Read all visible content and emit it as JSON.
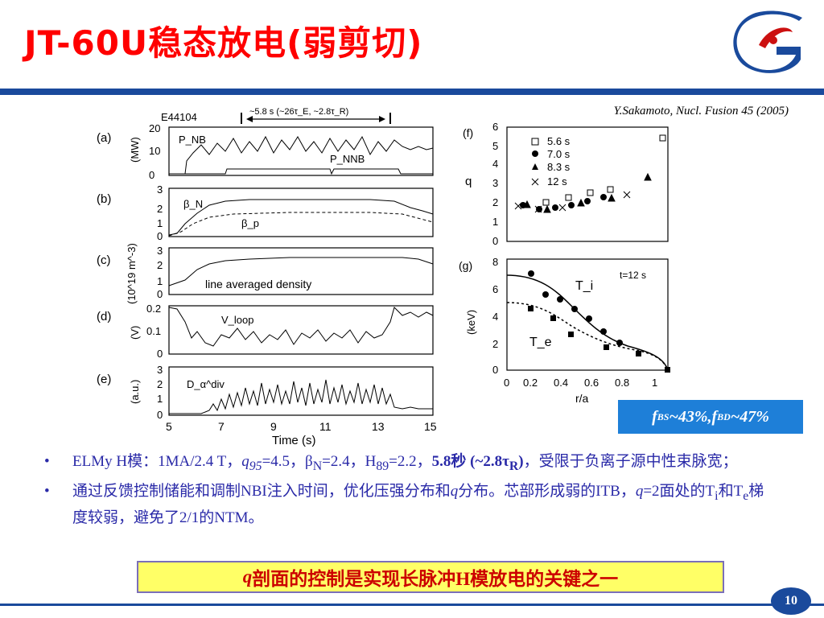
{
  "slide": {
    "title": "JT-60U稳态放电(弱剪切)",
    "citation": "Y.Sakamoto, Nucl. Fusion 45 (2005)",
    "badge": {
      "f1": "f",
      "sub1": "BS",
      "v1": "~43%,",
      "f2": "f",
      "sub2": "BD",
      "v2": "~47%"
    },
    "bullets": [
      {
        "parts": [
          {
            "t": "ELMy H模：1MA/2.4 T，"
          },
          {
            "t": "q",
            "i": true
          },
          {
            "t": "95",
            "i": true,
            "sub": true
          },
          {
            "t": "=4.5，β"
          },
          {
            "t": "N",
            "sub": true
          },
          {
            "t": "=2.4，H"
          },
          {
            "t": "89",
            "sub": true
          },
          {
            "t": "=2.2，"
          },
          {
            "t": "5.8秒 (~2.8τ",
            "b": true
          },
          {
            "t": "R",
            "sub": true,
            "b": true
          },
          {
            "t": ")",
            "b": true
          },
          {
            "t": "，受限于负离子源中性束脉宽；"
          }
        ]
      },
      {
        "parts": [
          {
            "t": "通过反馈控制储能和调制NBI注入时间，优化压强分布和"
          },
          {
            "t": "q",
            "i": true
          },
          {
            "t": "分布。芯部形成弱的ITB，"
          },
          {
            "t": "q",
            "i": true
          },
          {
            "t": "=2面处的T"
          },
          {
            "t": "i",
            "sub": true
          },
          {
            "t": "和T"
          },
          {
            "t": "e",
            "sub": true
          },
          {
            "t": "梯度较弱，避免了2/1的NTM。"
          }
        ]
      }
    ],
    "highlight": {
      "q": "q",
      "text": "剖面的控制是实现长脉冲H模放电的关键之一"
    },
    "page_number": "10"
  },
  "figure": {
    "shot_label": "E44104",
    "duration_annotation": "~5.8 s (~26τ_E, ~2.8τ_R)",
    "time_xlabel": "Time (s)",
    "time_ticks": [
      "5",
      "7",
      "9",
      "11",
      "13",
      "15"
    ],
    "panels": {
      "a": {
        "letter": "(a)",
        "ylabel": "(MW)",
        "yticks": [
          "0",
          "10",
          "20"
        ],
        "labels": [
          "P_NB",
          "P_NNB"
        ]
      },
      "b": {
        "letter": "(b)",
        "ylabel": "",
        "yticks": [
          "0",
          "1",
          "2",
          "3"
        ],
        "labels": [
          "β_N",
          "β_p"
        ]
      },
      "c": {
        "letter": "(c)",
        "ylabel": "(10^19 m^-3)",
        "yticks": [
          "0",
          "1",
          "2",
          "3"
        ],
        "labels": [
          "line averaged density"
        ]
      },
      "d": {
        "letter": "(d)",
        "ylabel": "(V)",
        "yticks": [
          "0",
          "0.1",
          "0.2"
        ],
        "labels": [
          "V_loop"
        ]
      },
      "e": {
        "letter": "(e)",
        "ylabel": "(a.u.)",
        "yticks": [
          "0",
          "1",
          "2",
          "3"
        ],
        "labels": [
          "D_α^div"
        ]
      },
      "f": {
        "letter": "(f)",
        "ylabel": "q",
        "yticks": [
          "0",
          "1",
          "2",
          "3",
          "4",
          "5",
          "6"
        ],
        "legend": [
          "5.6 s",
          "7.0 s",
          "8.3 s",
          "12 s"
        ]
      },
      "g": {
        "letter": "(g)",
        "ylabel": "(keV)",
        "yticks": [
          "0",
          "2",
          "4",
          "6",
          "8"
        ],
        "xticks": [
          "0",
          "0.2",
          "0.4",
          "0.6",
          "0.8",
          "1"
        ],
        "xlabel": "r/a",
        "time_label": "t=12 s",
        "labels": [
          "T_i",
          "T_e"
        ]
      }
    }
  }
}
